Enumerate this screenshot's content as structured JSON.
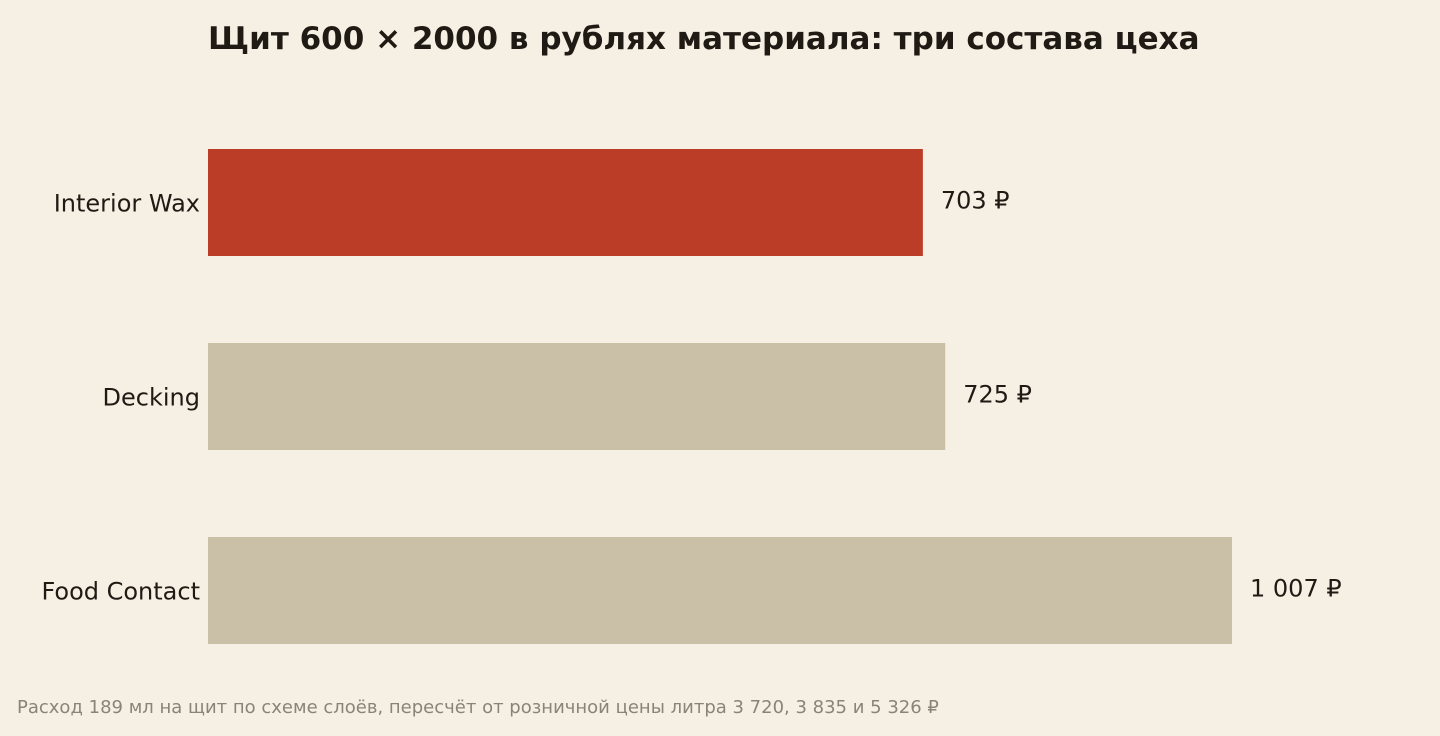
{
  "colors": {
    "background": "#f6f0e4",
    "highlight": "#bc3d27",
    "muted": "#cabfa7",
    "text": "#1f1a14",
    "footnote": "#8a8478"
  },
  "chart_data": {
    "type": "bar",
    "orientation": "horizontal",
    "title": "Щит 600 × 2000 в рублях материала: три состава цеха",
    "categories": [
      "Interior Wax",
      "Decking",
      "Food Contact"
    ],
    "values": [
      703,
      725,
      1007
    ],
    "value_labels": [
      "703 ₽",
      "725 ₽",
      "1 007 ₽"
    ],
    "highlighted": "Interior Wax",
    "xlabel": "",
    "ylabel": "",
    "grid": false,
    "legend": "none",
    "footnote": "Расход 189 мл на щит по схеме слоёв, пересчёт от розничной цены литра 3 720, 3 835 и 5 326 ₽"
  }
}
